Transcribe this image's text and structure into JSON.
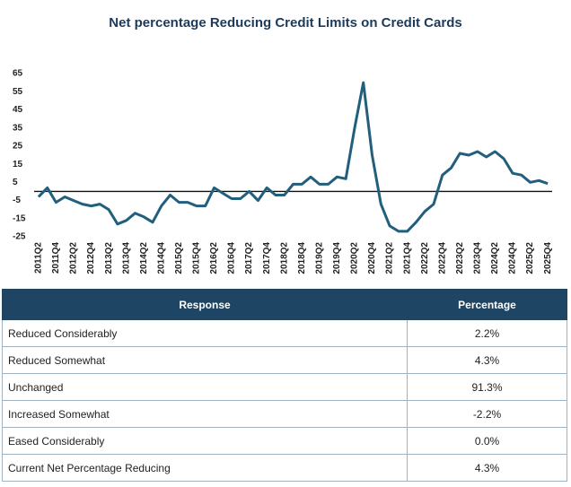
{
  "chart_data": {
    "type": "line",
    "title": "Net percentage Reducing Credit Limits on Credit Cards",
    "categories": [
      "2011Q2",
      null,
      "2011Q4",
      null,
      "2012Q2",
      null,
      "2012Q4",
      null,
      "2013Q2",
      null,
      "2013Q4",
      null,
      "2014Q2",
      null,
      "2014Q4",
      null,
      "2015Q2",
      null,
      "2015Q4",
      null,
      "2016Q2",
      null,
      "2016Q4",
      null,
      "2017Q2",
      null,
      "2017Q4",
      null,
      "2018Q2",
      null,
      "2018Q4",
      null,
      "2019Q2",
      null,
      "2019Q4",
      null,
      "2020Q2",
      null,
      "2020Q4",
      null,
      "2021Q2",
      null,
      "2021Q4",
      null,
      "2022Q2",
      null,
      "2022Q4",
      null,
      "2023Q2",
      null,
      "2023Q4",
      null,
      "2024Q2",
      null,
      "2024Q4",
      null,
      "2025Q2",
      null,
      "2025Q4"
    ],
    "values": [
      -3,
      2,
      -6,
      -3,
      -5,
      -7,
      -8,
      -7,
      -10,
      -18,
      -16,
      -12,
      -14,
      -17,
      -8,
      -2,
      -6,
      -6,
      -8,
      -8,
      2,
      -1,
      -4,
      -4,
      0,
      -5,
      2,
      -2,
      -2,
      4,
      4,
      8,
      4,
      4,
      8,
      7,
      35,
      60,
      20,
      -7,
      -19,
      -22,
      -22,
      -17,
      -11,
      -7,
      9,
      13,
      21,
      20,
      22,
      19,
      22,
      18,
      10,
      9,
      5,
      6,
      4.3
    ],
    "color": "#215f7c",
    "ylim": [
      -25,
      65
    ],
    "yticks": [
      65,
      55,
      45,
      35,
      25,
      15,
      5,
      -5,
      -15,
      -25
    ],
    "grid": false
  },
  "table": {
    "columns": [
      "Response",
      "Percentage"
    ],
    "rows": [
      [
        "Reduced Considerably",
        "2.2%"
      ],
      [
        "Reduced Somewhat",
        "4.3%"
      ],
      [
        "Unchanged",
        "91.3%"
      ],
      [
        "Increased Somewhat",
        "-2.2%"
      ],
      [
        "Eased Considerably",
        "0.0%"
      ],
      [
        "Current Net Percentage Reducing",
        "4.3%"
      ]
    ]
  }
}
